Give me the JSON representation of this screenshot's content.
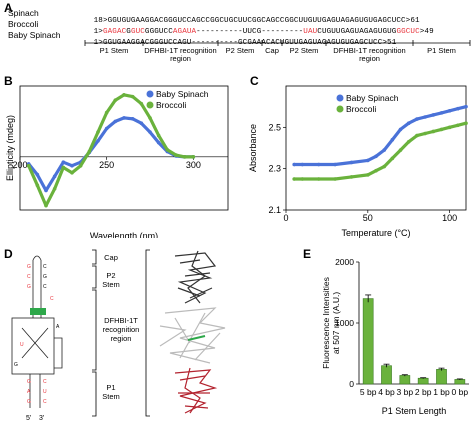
{
  "panels": [
    "A",
    "B",
    "C",
    "D",
    "E"
  ],
  "panelA": {
    "rows": [
      {
        "name": "Spinach",
        "segs": [
          {
            "t": "18>GGUGUGAAGGACGGGUCCAGCCGGCUGCUUCGGCAGCCGGCUUGUUGAGUAGAGUGUGAGCUCC>61",
            "c": "k"
          }
        ]
      },
      {
        "name": "Broccoli",
        "segs": [
          {
            "t": "1>",
            "c": "k"
          },
          {
            "t": "GAGAC",
            "c": "r"
          },
          {
            "t": "G",
            "c": "k"
          },
          {
            "t": "GUC",
            "c": "r"
          },
          {
            "t": "GGGUCC",
            "c": "k"
          },
          {
            "t": "AGAUA",
            "c": "r"
          },
          {
            "t": "----------UUCG---------",
            "c": "k"
          },
          {
            "t": "UAU",
            "c": "r"
          },
          {
            "t": "CUGUUGAGUAGAGUGUG",
            "c": "k"
          },
          {
            "t": "GGCUC",
            "c": "r"
          },
          {
            "t": ">49",
            "c": "k"
          }
        ]
      },
      {
        "name": "Baby Spinach",
        "segs": [
          {
            "t": "1>GGUGAAGGACGGGUCCAGU----------GCGAAACACUGUUGAGUAGAGUGUGAGCUCC>51",
            "c": "k"
          }
        ]
      }
    ],
    "regions": [
      "P1 Stem",
      "DFHBI-1T recognition region",
      "P2 Stem",
      "Cap",
      "P2 Stem",
      "DFHBI-1T recognition region",
      "P1 Stem"
    ]
  },
  "panelB": {
    "chart_data": {
      "type": "line",
      "xlabel": "Wavelength (nm)",
      "ylabel": "Ellipticity (mdeg)",
      "xlim": [
        200,
        320
      ],
      "ylim": [
        -60,
        80
      ],
      "xticks": [
        200,
        250,
        300
      ],
      "legend": "top-right",
      "series": [
        {
          "name": "Baby Spinach",
          "color": "#4a72d8",
          "x": [
            205,
            210,
            215,
            220,
            225,
            230,
            235,
            240,
            245,
            250,
            255,
            260,
            265,
            270,
            275,
            280,
            285,
            290,
            295,
            300
          ],
          "y": [
            -8,
            -20,
            -38,
            -22,
            -6,
            -10,
            -6,
            5,
            18,
            32,
            40,
            44,
            43,
            38,
            28,
            16,
            6,
            1,
            0,
            0
          ]
        },
        {
          "name": "Broccoli",
          "color": "#6ab23c",
          "x": [
            205,
            210,
            215,
            220,
            225,
            230,
            235,
            240,
            245,
            250,
            255,
            260,
            265,
            270,
            275,
            280,
            285,
            290,
            295,
            300
          ],
          "y": [
            -10,
            -32,
            -55,
            -36,
            -12,
            -18,
            -10,
            6,
            28,
            50,
            64,
            70,
            68,
            60,
            44,
            24,
            8,
            2,
            0,
            0
          ]
        }
      ]
    }
  },
  "panelC": {
    "chart_data": {
      "type": "line",
      "xlabel": "Temperature (°C)",
      "ylabel": "Absorbance",
      "xlim": [
        0,
        110
      ],
      "ylim": [
        2.1,
        2.7
      ],
      "xticks": [
        0,
        50,
        100
      ],
      "yticks": [
        2.1,
        2.3,
        2.5
      ],
      "legend": "top-left",
      "series": [
        {
          "name": "Baby Spinach",
          "color": "#4a72d8",
          "x": [
            5,
            10,
            20,
            30,
            40,
            50,
            55,
            60,
            65,
            70,
            75,
            80,
            85,
            90,
            95,
            100,
            105,
            110
          ],
          "y": [
            2.32,
            2.32,
            2.32,
            2.32,
            2.33,
            2.34,
            2.36,
            2.39,
            2.44,
            2.49,
            2.52,
            2.54,
            2.55,
            2.56,
            2.57,
            2.58,
            2.59,
            2.6
          ]
        },
        {
          "name": "Broccoli",
          "color": "#6ab23c",
          "x": [
            5,
            10,
            20,
            30,
            40,
            50,
            55,
            60,
            65,
            70,
            75,
            80,
            85,
            90,
            95,
            100,
            105,
            110
          ],
          "y": [
            2.25,
            2.25,
            2.25,
            2.25,
            2.26,
            2.27,
            2.29,
            2.31,
            2.35,
            2.39,
            2.43,
            2.46,
            2.47,
            2.48,
            2.49,
            2.5,
            2.51,
            2.52
          ]
        }
      ]
    }
  },
  "panelD": {
    "labels": [
      "Cap",
      "P2 Stem",
      "DFHBI-1T recognition region",
      "P1 Stem"
    ],
    "ends": [
      "5'",
      "3'"
    ]
  },
  "panelE": {
    "chart_data": {
      "type": "bar",
      "title": "",
      "xlabel": "P1 Stem Length",
      "ylabel": "Fluorescence Intensities at 507 nm (A.U.)",
      "categories": [
        "5 bp",
        "4 bp",
        "3 bp",
        "2 bp",
        "1 bp",
        "0 bp"
      ],
      "values": [
        1400,
        300,
        140,
        95,
        240,
        75
      ],
      "errors": [
        60,
        25,
        12,
        8,
        20,
        8
      ],
      "ylim": [
        0,
        2000
      ],
      "yticks": [
        0,
        1000,
        2000
      ],
      "color": "#6ab23c"
    }
  }
}
